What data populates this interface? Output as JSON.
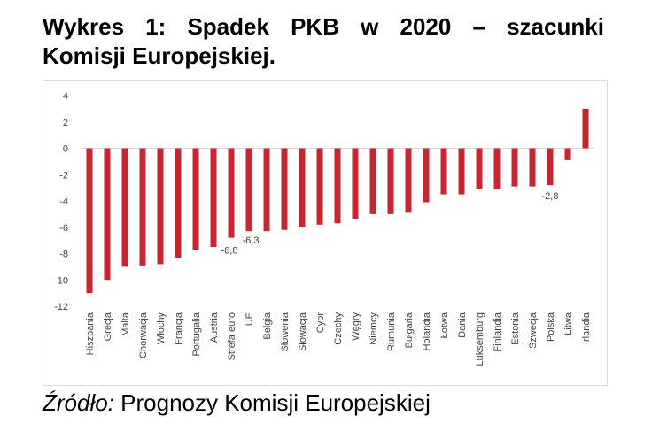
{
  "title": {
    "words": [
      "Wykres",
      "1:",
      "Spadek",
      "PKB",
      "w",
      "2020",
      "–",
      "szacunki"
    ],
    "line2": "Komisji Europejskiej."
  },
  "source": {
    "label": "Źródło:",
    "text": " Prognozy Komisji Europejskiej"
  },
  "chart_data": {
    "type": "bar",
    "categories": [
      "Hiszpania",
      "Grecja",
      "Malta",
      "Chorwacja",
      "Włochy",
      "Francja",
      "Portugalia",
      "Austria",
      "Strefa euro",
      "UE",
      "Belgia",
      "Słowenia",
      "Słowacja",
      "Cypr",
      "Czechy",
      "Węgry",
      "Niemcy",
      "Rumunia",
      "Bułgaria",
      "Holandia",
      "Łotwa",
      "Dania",
      "Luksemburg",
      "Finlandia",
      "Estonia",
      "Szwecja",
      "Polska",
      "Litwa",
      "Irlandia"
    ],
    "values": [
      -11.0,
      -10.0,
      -9.0,
      -8.9,
      -8.8,
      -8.3,
      -7.7,
      -7.5,
      -6.8,
      -6.3,
      -6.3,
      -6.2,
      -6.0,
      -5.8,
      -5.7,
      -5.4,
      -5.0,
      -5.0,
      -4.9,
      -4.1,
      -3.5,
      -3.5,
      -3.1,
      -3.1,
      -2.9,
      -2.9,
      -2.8,
      -0.9,
      3.0
    ],
    "data_labels": [
      {
        "category": "Strefa euro",
        "text": "-6,8"
      },
      {
        "category": "UE",
        "text": "-6,3"
      },
      {
        "category": "Polska",
        "text": "-2,8"
      }
    ],
    "yticks": [
      "4",
      "2",
      "0",
      "-2",
      "-4",
      "-6",
      "-8",
      "-10",
      "-12"
    ],
    "ylim": [
      -12,
      4
    ],
    "colors": {
      "bar": "#c9252f",
      "axis": "#d9d9d9"
    }
  }
}
